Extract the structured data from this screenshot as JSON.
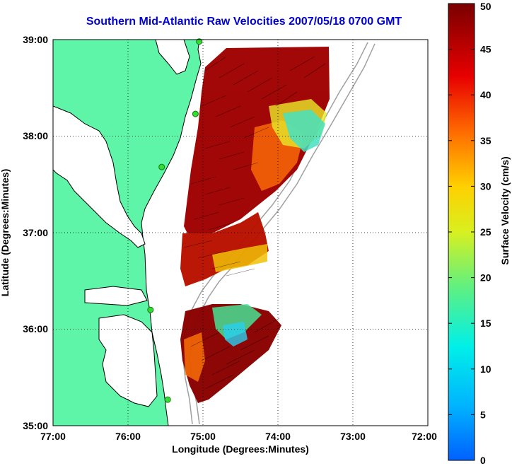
{
  "title": "Southern Mid-Atlantic Raw Velocities 2007/05/18 0700 GMT",
  "x_axis": {
    "label": "Longitude (Degrees:Minutes)",
    "ticks": [
      "77:00",
      "76:00",
      "75:00",
      "74:00",
      "73:00",
      "72:00"
    ]
  },
  "y_axis": {
    "label": "Latitude (Degrees:Minutes)",
    "ticks": [
      "39:00",
      "38:00",
      "37:00",
      "36:00",
      "35:00"
    ]
  },
  "colorbar": {
    "label": "Surface Velocity (cm/s)",
    "ticks": [
      "50",
      "45",
      "40",
      "35",
      "30",
      "25",
      "20",
      "15",
      "10",
      "5",
      "0"
    ],
    "range": [
      0,
      50
    ]
  },
  "colors": {
    "land": "#5ff5a8",
    "coastline": "#000000",
    "bathymetry": "#a0a0a0",
    "title": "#0000d8",
    "station": "#33dd33"
  },
  "map": {
    "lon_range": [
      -77,
      -72
    ],
    "lat_range": [
      35,
      39
    ],
    "stations": [
      {
        "lon": -75.05,
        "lat": 38.98
      },
      {
        "lon": -75.1,
        "lat": 38.23
      },
      {
        "lon": -75.55,
        "lat": 37.68
      },
      {
        "lon": -75.7,
        "lat": 36.2
      },
      {
        "lon": -75.47,
        "lat": 35.27
      }
    ]
  }
}
